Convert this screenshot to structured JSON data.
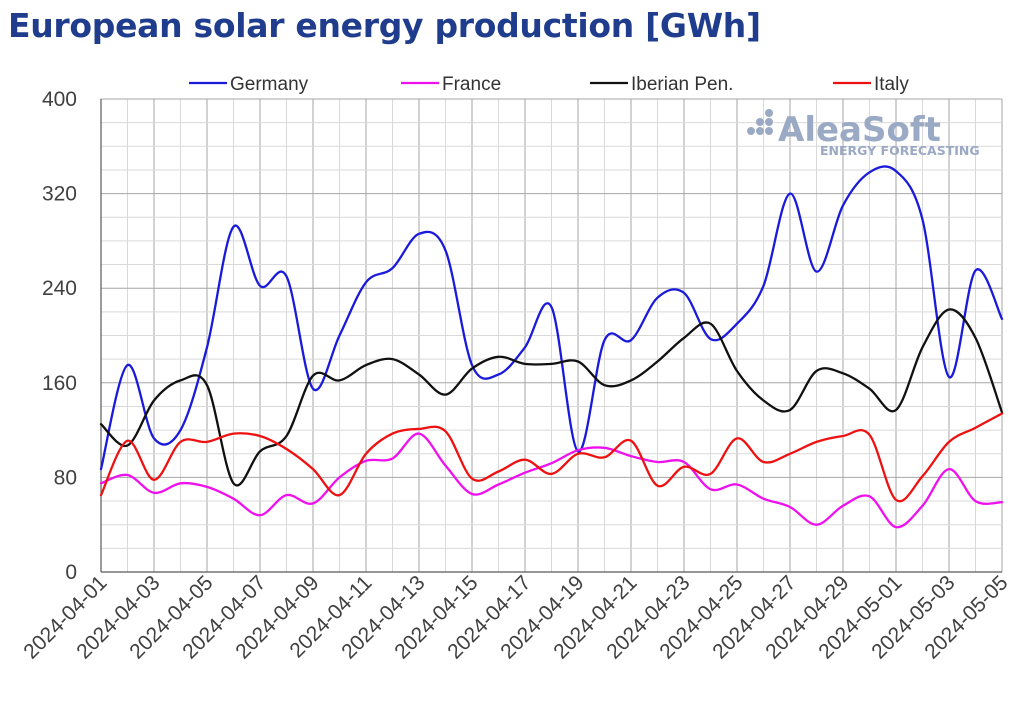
{
  "page_title": "European solar energy production [GWh]",
  "watermark": {
    "name": "AleaSoft",
    "tagline": "ENERGY FORECASTING",
    "color": "#9aa9c4"
  },
  "chart_data": {
    "type": "line",
    "title": "European solar energy production [GWh]",
    "xlabel": "",
    "ylabel": "",
    "ylim": [
      0,
      400
    ],
    "yticks": [
      0,
      80,
      160,
      240,
      320,
      400
    ],
    "grid": true,
    "legend_position": "top",
    "x": [
      "2024-04-01",
      "2024-04-02",
      "2024-04-03",
      "2024-04-04",
      "2024-04-05",
      "2024-04-06",
      "2024-04-07",
      "2024-04-08",
      "2024-04-09",
      "2024-04-10",
      "2024-04-11",
      "2024-04-12",
      "2024-04-13",
      "2024-04-14",
      "2024-04-15",
      "2024-04-16",
      "2024-04-17",
      "2024-04-18",
      "2024-04-19",
      "2024-04-20",
      "2024-04-21",
      "2024-04-22",
      "2024-04-23",
      "2024-04-24",
      "2024-04-25",
      "2024-04-26",
      "2024-04-27",
      "2024-04-28",
      "2024-04-29",
      "2024-04-30",
      "2024-05-01",
      "2024-05-02",
      "2024-05-03",
      "2024-05-04",
      "2024-05-05"
    ],
    "xticks": [
      "2024-04-01",
      "2024-04-03",
      "2024-04-05",
      "2024-04-07",
      "2024-04-09",
      "2024-04-11",
      "2024-04-13",
      "2024-04-15",
      "2024-04-17",
      "2024-04-19",
      "2024-04-21",
      "2024-04-23",
      "2024-04-25",
      "2024-04-27",
      "2024-04-29",
      "2024-05-01",
      "2024-05-03",
      "2024-05-05"
    ],
    "series": [
      {
        "name": "Germany",
        "color": "#1a1adb",
        "values": [
          87,
          175,
          113,
          120,
          190,
          292,
          242,
          250,
          155,
          200,
          245,
          257,
          286,
          272,
          175,
          167,
          190,
          224,
          102,
          196,
          196,
          232,
          236,
          197,
          210,
          242,
          320,
          254,
          310,
          338,
          339,
          298,
          165,
          255,
          214
        ]
      },
      {
        "name": "France",
        "color": "#ee11ee",
        "values": [
          75,
          82,
          67,
          75,
          72,
          62,
          48,
          65,
          58,
          80,
          94,
          96,
          117,
          90,
          66,
          74,
          84,
          92,
          103,
          105,
          98,
          93,
          93,
          70,
          74,
          62,
          55,
          40,
          56,
          64,
          38,
          56,
          87,
          60,
          59
        ]
      },
      {
        "name": "Iberian Pen.",
        "color": "#111111",
        "values": [
          125,
          107,
          145,
          162,
          158,
          75,
          102,
          115,
          166,
          162,
          175,
          180,
          167,
          150,
          172,
          182,
          176,
          176,
          178,
          158,
          162,
          178,
          198,
          210,
          170,
          145,
          137,
          170,
          168,
          155,
          137,
          190,
          222,
          198,
          135
        ]
      },
      {
        "name": "Italy",
        "color": "#ee1111",
        "values": [
          65,
          111,
          78,
          110,
          110,
          117,
          115,
          104,
          87,
          65,
          100,
          117,
          121,
          119,
          79,
          85,
          95,
          83,
          100,
          97,
          111,
          73,
          89,
          83,
          113,
          93,
          100,
          110,
          115,
          116,
          61,
          81,
          110,
          122,
          134
        ]
      }
    ]
  }
}
